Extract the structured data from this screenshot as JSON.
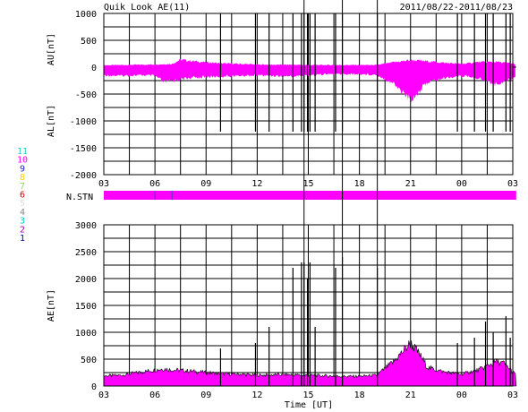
{
  "header": {
    "title": "Quik Look AE(11)",
    "date_range": "2011/08/22-2011/08/23"
  },
  "station_legend": [
    {
      "n": "11",
      "color": "#33cccc"
    },
    {
      "n": "10",
      "color": "#ff00ff"
    },
    {
      "n": "9",
      "color": "#2222cc"
    },
    {
      "n": "8",
      "color": "#ffcc00"
    },
    {
      "n": "7",
      "color": "#99cc66"
    },
    {
      "n": "6",
      "color": "#cc0000"
    },
    {
      "n": "5",
      "color": "#dddddd"
    },
    {
      "n": "4",
      "color": "#888888"
    },
    {
      "n": "3",
      "color": "#00cccc"
    },
    {
      "n": "2",
      "color": "#aa00aa"
    },
    {
      "n": "1",
      "color": "#0000cc"
    }
  ],
  "nstn_label": "N.STN",
  "chart_data": [
    {
      "type": "area",
      "name": "AU/AL panel",
      "ylabel_upper": "AU[nT]",
      "ylabel_lower": "AL[nT]",
      "x_ticks": [
        "03",
        "06",
        "09",
        "12",
        "15",
        "18",
        "21",
        "00",
        "03"
      ],
      "ylim": [
        -2000,
        1000
      ],
      "yticks": [
        1000,
        500,
        0,
        -500,
        -1000,
        -1500,
        -2000
      ],
      "data_end_hour": 24.2,
      "fill_color": "#ff00ff",
      "grid": true,
      "au_series": {
        "hours": [
          0,
          1,
          2,
          3,
          4,
          4.5,
          5,
          6,
          7,
          8,
          9,
          10,
          11,
          12,
          13,
          14,
          15,
          16,
          17,
          18,
          19,
          20,
          21,
          22,
          23,
          24,
          24.2
        ],
        "values": [
          35,
          40,
          45,
          50,
          60,
          140,
          120,
          90,
          70,
          60,
          50,
          45,
          45,
          40,
          40,
          40,
          40,
          40,
          90,
          130,
          110,
          80,
          60,
          95,
          100,
          70,
          50
        ]
      },
      "al_series": {
        "hours": [
          0,
          1,
          2,
          3,
          3.5,
          4,
          5,
          6,
          7,
          8,
          9,
          10,
          11,
          12,
          13,
          14,
          15,
          16,
          17,
          18,
          18.5,
          19,
          20,
          21,
          22,
          23,
          24,
          24.2
        ],
        "values": [
          -150,
          -160,
          -150,
          -160,
          -270,
          -250,
          -200,
          -180,
          -170,
          -160,
          -150,
          -160,
          -170,
          -150,
          -130,
          -130,
          -130,
          -140,
          -300,
          -600,
          -450,
          -280,
          -200,
          -160,
          -200,
          -320,
          -200,
          -150
        ]
      },
      "spikes_hours": [
        6.85,
        8.9,
        9.7,
        11.1,
        11.6,
        11.75,
        11.95,
        12.1,
        12.4,
        13.6,
        14.0,
        16.05,
        20.75,
        21.75,
        22.4,
        22.85,
        23.6,
        23.85
      ]
    },
    {
      "type": "area",
      "name": "N.STN panel",
      "fill_color": "#ff00ff",
      "data_end_hour": 24.2,
      "station_count_bar": [
        {
          "start": 0,
          "end": 24.2,
          "value": 10
        }
      ]
    },
    {
      "type": "area",
      "name": "AE panel",
      "ylabel": "AE[nT]",
      "xlabel": "Time [UT]",
      "x_ticks": [
        "03",
        "06",
        "09",
        "12",
        "15",
        "18",
        "21",
        "00",
        "03"
      ],
      "ylim": [
        0,
        3000
      ],
      "yticks": [
        3000,
        2500,
        2000,
        1500,
        1000,
        500,
        0
      ],
      "data_end_hour": 24.2,
      "fill_color": "#ff00ff",
      "grid": true,
      "series": {
        "hours": [
          0,
          1,
          2,
          3,
          3.5,
          4,
          5,
          6,
          7,
          8,
          9,
          10,
          11,
          12,
          13,
          14,
          15,
          16,
          17,
          18,
          18.5,
          19,
          19.5,
          20,
          21,
          22,
          23,
          23.5,
          24,
          24.2
        ],
        "values": [
          190,
          200,
          250,
          300,
          320,
          300,
          280,
          250,
          230,
          220,
          200,
          210,
          210,
          200,
          190,
          180,
          180,
          200,
          450,
          800,
          600,
          350,
          300,
          260,
          220,
          300,
          450,
          420,
          260,
          200
        ]
      },
      "spikes_hours": [
        6.85,
        8.9,
        9.7,
        11.1,
        11.6,
        11.75,
        11.95,
        12.1,
        12.4,
        13.6,
        14.0,
        16.05,
        20.75,
        21.75,
        22.4,
        22.85,
        23.6,
        23.85
      ],
      "spikes_values": [
        700,
        800,
        1100,
        2200,
        2300,
        2300,
        2000,
        2300,
        1100,
        2200,
        2400,
        2200,
        800,
        900,
        1200,
        1000,
        1300,
        900
      ]
    }
  ]
}
